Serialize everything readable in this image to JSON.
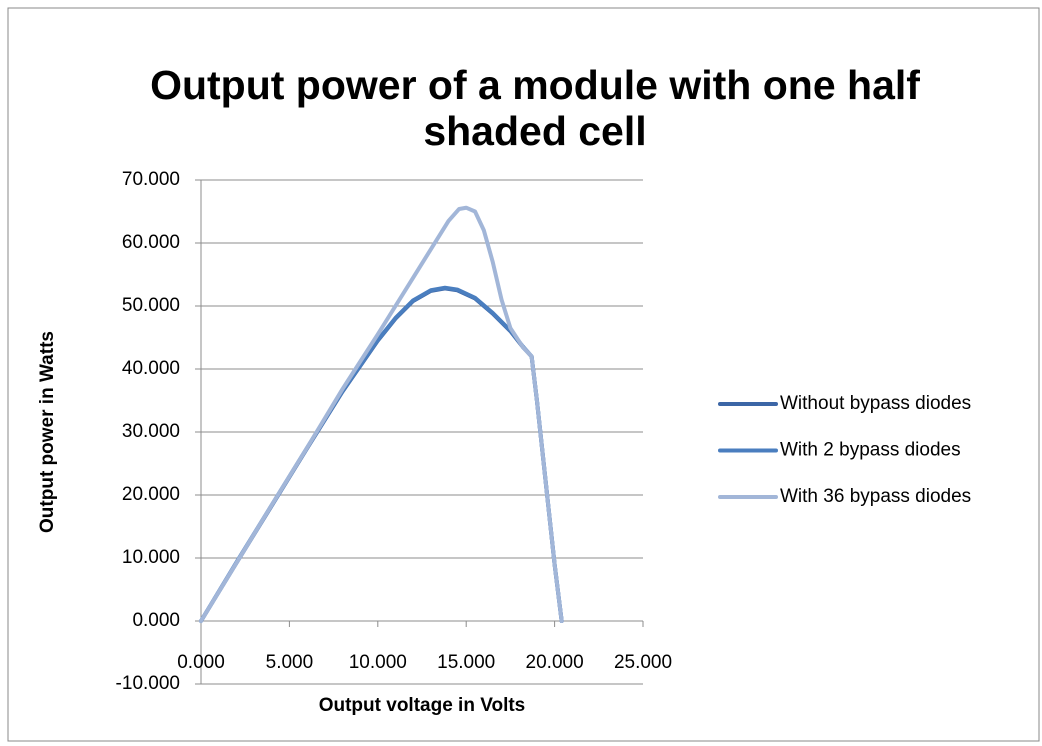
{
  "chart_data": {
    "type": "line",
    "title": "Output power of a module with one half shaded cell",
    "x_label": "Output voltage in Volts",
    "y_label": "Output power  in Watts",
    "xlim": [
      0,
      25
    ],
    "xticks": [
      {
        "value": 0,
        "label": "0.000"
      },
      {
        "value": 5,
        "label": "5.000"
      },
      {
        "value": 10,
        "label": "10.000"
      },
      {
        "value": 15,
        "label": "15.000"
      },
      {
        "value": 20,
        "label": "20.000"
      },
      {
        "value": 25,
        "label": "25.000"
      }
    ],
    "ylim": [
      -10,
      70
    ],
    "yticks": [
      {
        "value": -10,
        "label": "-10.000"
      },
      {
        "value": 0,
        "label": "0.000"
      },
      {
        "value": 10,
        "label": "10.000"
      },
      {
        "value": 20,
        "label": "20.000"
      },
      {
        "value": 30,
        "label": "30.000"
      },
      {
        "value": 40,
        "label": "40.000"
      },
      {
        "value": 50,
        "label": "50.000"
      },
      {
        "value": 60,
        "label": "60.000"
      },
      {
        "value": 70,
        "label": "70.000"
      }
    ],
    "grid": true,
    "legend": "right",
    "series": [
      {
        "name": "Without bypass diodes",
        "color": "#3c66a6",
        "x": [
          0,
          2,
          4,
          6,
          8,
          10,
          11,
          12,
          13,
          13.8,
          14.5,
          15.5,
          16.5,
          17.5,
          18.2,
          18.7,
          19,
          19.5,
          20,
          20.4
        ],
        "values": [
          0,
          9.2,
          18.3,
          27.4,
          36.4,
          44.5,
          48,
          50.8,
          52.4,
          52.8,
          52.5,
          51.2,
          48.8,
          46,
          43.5,
          42,
          35,
          22,
          9,
          0
        ]
      },
      {
        "name": "With 2 bypass diodes",
        "color": "#4a7ebf",
        "x": [
          0,
          2,
          4,
          6,
          8,
          10,
          11,
          12,
          13,
          13.8,
          14.5,
          15.5,
          16.5,
          17.5,
          18.2,
          18.7,
          19,
          19.5,
          20,
          20.4
        ],
        "values": [
          0,
          9.3,
          18.4,
          27.5,
          36.5,
          44.6,
          48.1,
          50.9,
          52.5,
          52.9,
          52.6,
          51.3,
          48.9,
          46.1,
          43.6,
          42,
          35,
          22,
          9,
          0
        ]
      },
      {
        "name": "With 36 bypass diodes",
        "color": "#a2b6d8",
        "x": [
          0,
          2,
          4,
          6,
          8,
          10,
          11,
          12,
          13,
          14,
          14.6,
          15,
          15.5,
          16,
          16.5,
          17,
          17.5,
          18.2,
          18.7,
          19,
          19.5,
          20,
          20.4
        ],
        "values": [
          0,
          9.2,
          18.4,
          27.5,
          36.8,
          45.5,
          50,
          54.5,
          59,
          63.5,
          65.4,
          65.6,
          65,
          62,
          57,
          51,
          46.5,
          43.5,
          42,
          35,
          22,
          9,
          0
        ]
      }
    ]
  }
}
